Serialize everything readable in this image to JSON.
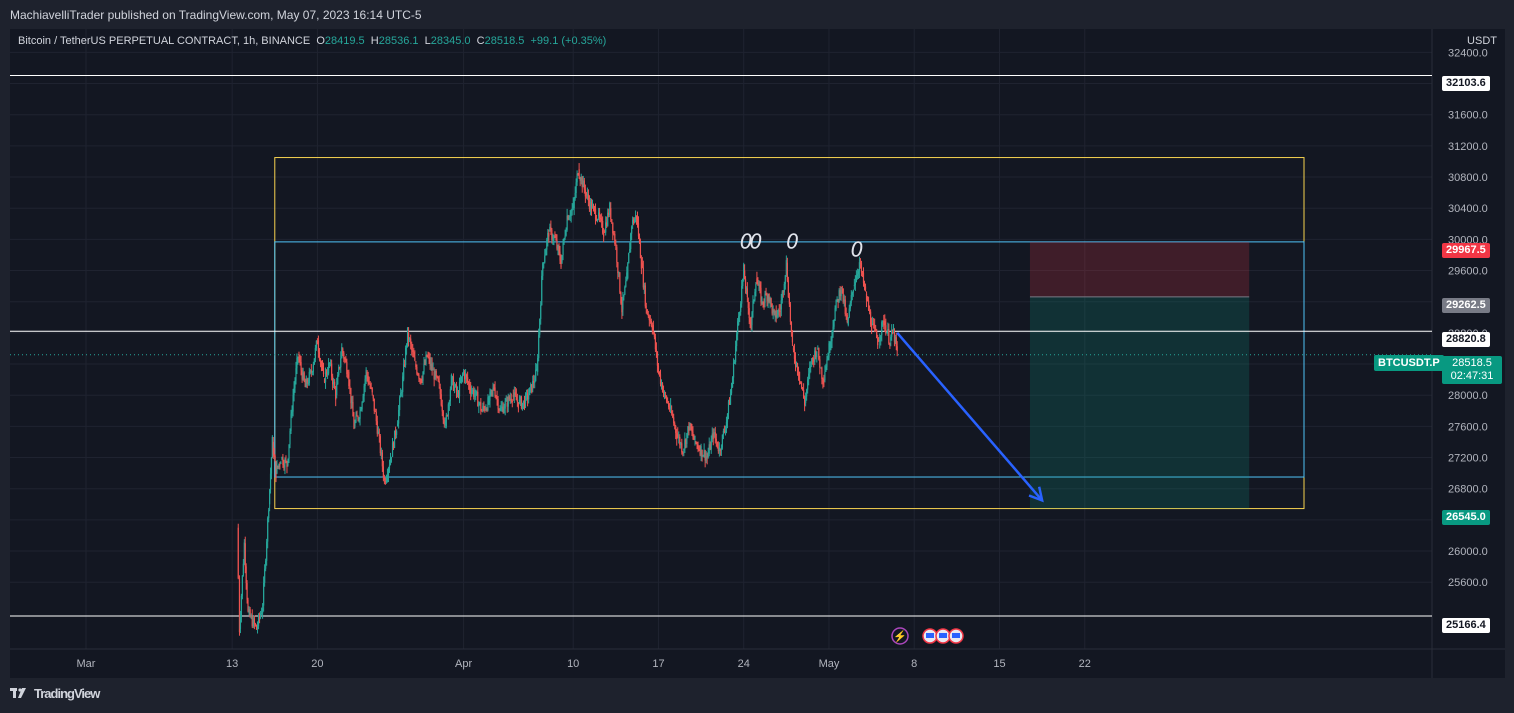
{
  "publisher": "MachiavelliTrader published on TradingView.com, May 07, 2023 16:14 UTC-5",
  "legend": {
    "symbol": "Bitcoin / TetherUS PERPETUAL CONTRACT, 1h, BINANCE",
    "o_label": "O",
    "o": "28419.5",
    "h_label": "H",
    "h": "28536.1",
    "l_label": "L",
    "l": "28345.0",
    "c_label": "C",
    "c": "28518.5",
    "change": "+99.1 (+0.35%)"
  },
  "currency": "USDT",
  "price_tags": {
    "top_line": "32103.6",
    "stop": "29967.5",
    "entry": "29262.5",
    "mid_line": "28820.8",
    "target": "26545.0",
    "bottom_line": "25166.4",
    "symbol": "BTCUSDT.P",
    "last": "28518.5",
    "countdown": "02:47:31"
  },
  "footer": {
    "brand": "TradingView"
  },
  "colors": {
    "up": "#26a69a",
    "down": "#ef5350",
    "bg": "#131722",
    "yellow_box": "#f7d34f",
    "cyan_box": "#4fc3f7",
    "risk": "#f23645",
    "reward": "#089981",
    "arrow": "#2962ff"
  },
  "chart_data": {
    "type": "candlestick",
    "interval": "1h",
    "ylim": [
      24900,
      32750
    ],
    "y_ticks": [
      25600,
      26000,
      26400,
      26800,
      27200,
      27600,
      28000,
      28400,
      28800,
      29200,
      29600,
      30000,
      30400,
      30800,
      31200,
      31600,
      32000,
      32400
    ],
    "y_tick_labels": [
      "25600.0",
      "26000.0",
      "26400.0",
      "26800.0",
      "27200.0",
      "27600.0",
      "28000.0",
      "28400.0",
      "28800.0",
      "29200.0",
      "29600.0",
      "30000.0",
      "30400.0",
      "30800.0",
      "31200.0",
      "31600.0",
      "32000.0",
      "32400.0"
    ],
    "x_labels": [
      {
        "label": "Mar",
        "day": 0
      },
      {
        "label": "13",
        "day": 12
      },
      {
        "label": "20",
        "day": 19
      },
      {
        "label": "Apr",
        "day": 31
      },
      {
        "label": "10",
        "day": 40
      },
      {
        "label": "17",
        "day": 47
      },
      {
        "label": "24",
        "day": 54
      },
      {
        "label": "May",
        "day": 61
      },
      {
        "label": "8",
        "day": 68
      },
      {
        "label": "15",
        "day": 75
      },
      {
        "label": "22",
        "day": 82
      }
    ],
    "price_path": [
      [
        12.4,
        26300
      ],
      [
        12.6,
        25000
      ],
      [
        13.0,
        26100
      ],
      [
        13.3,
        25200
      ],
      [
        14.0,
        25000
      ],
      [
        14.5,
        25300
      ],
      [
        15.0,
        26600
      ],
      [
        15.3,
        27400
      ],
      [
        15.6,
        27000
      ],
      [
        16.0,
        27200
      ],
      [
        16.5,
        27100
      ],
      [
        17.0,
        28000
      ],
      [
        17.4,
        28500
      ],
      [
        18.0,
        28100
      ],
      [
        18.5,
        28300
      ],
      [
        19.0,
        28700
      ],
      [
        19.5,
        28200
      ],
      [
        20.0,
        28400
      ],
      [
        20.5,
        28000
      ],
      [
        21.0,
        28600
      ],
      [
        21.5,
        28300
      ],
      [
        22.0,
        27600
      ],
      [
        22.5,
        27800
      ],
      [
        23.0,
        28300
      ],
      [
        23.5,
        28000
      ],
      [
        24.0,
        27500
      ],
      [
        24.5,
        26900
      ],
      [
        25.0,
        27200
      ],
      [
        25.5,
        27600
      ],
      [
        26.0,
        28200
      ],
      [
        26.4,
        28800
      ],
      [
        27.0,
        28400
      ],
      [
        27.5,
        28200
      ],
      [
        28.0,
        28500
      ],
      [
        28.5,
        28300
      ],
      [
        29.0,
        28100
      ],
      [
        29.5,
        27600
      ],
      [
        30.0,
        28200
      ],
      [
        30.5,
        28000
      ],
      [
        31.0,
        28300
      ],
      [
        31.5,
        28100
      ],
      [
        32.0,
        28000
      ],
      [
        32.5,
        27800
      ],
      [
        33.0,
        27900
      ],
      [
        33.5,
        28100
      ],
      [
        34.0,
        27800
      ],
      [
        34.5,
        27900
      ],
      [
        35.0,
        28000
      ],
      [
        35.5,
        27900
      ],
      [
        36.0,
        27900
      ],
      [
        36.6,
        28100
      ],
      [
        37.0,
        28300
      ],
      [
        37.5,
        29700
      ],
      [
        38.0,
        30100
      ],
      [
        38.5,
        30000
      ],
      [
        39.0,
        29700
      ],
      [
        39.5,
        30300
      ],
      [
        40.0,
        30400
      ],
      [
        40.4,
        30900
      ],
      [
        41.0,
        30600
      ],
      [
        41.5,
        30400
      ],
      [
        42.0,
        30300
      ],
      [
        42.5,
        30100
      ],
      [
        43.0,
        30400
      ],
      [
        43.5,
        29900
      ],
      [
        44.0,
        29100
      ],
      [
        44.4,
        29500
      ],
      [
        44.8,
        30200
      ],
      [
        45.2,
        30300
      ],
      [
        45.6,
        29700
      ],
      [
        46.0,
        29100
      ],
      [
        46.5,
        28900
      ],
      [
        47.0,
        28300
      ],
      [
        47.5,
        28000
      ],
      [
        48.0,
        27800
      ],
      [
        48.5,
        27500
      ],
      [
        49.0,
        27300
      ],
      [
        49.5,
        27600
      ],
      [
        50.0,
        27400
      ],
      [
        50.5,
        27300
      ],
      [
        51.0,
        27200
      ],
      [
        51.5,
        27500
      ],
      [
        52.0,
        27300
      ],
      [
        52.5,
        27600
      ],
      [
        53.0,
        28100
      ],
      [
        53.5,
        28900
      ],
      [
        54.0,
        29600
      ],
      [
        54.3,
        29200
      ],
      [
        54.6,
        28900
      ],
      [
        55.0,
        29500
      ],
      [
        55.5,
        29200
      ],
      [
        56.0,
        29300
      ],
      [
        56.5,
        29000
      ],
      [
        57.0,
        29100
      ],
      [
        57.5,
        29700
      ],
      [
        58.0,
        28600
      ],
      [
        58.5,
        28300
      ],
      [
        59.0,
        27900
      ],
      [
        59.5,
        28400
      ],
      [
        60.0,
        28600
      ],
      [
        60.5,
        28200
      ],
      [
        61.0,
        28600
      ],
      [
        61.5,
        29100
      ],
      [
        62.0,
        29400
      ],
      [
        62.5,
        28900
      ],
      [
        63.0,
        29400
      ],
      [
        63.5,
        29700
      ],
      [
        64.0,
        29300
      ],
      [
        64.5,
        28900
      ],
      [
        65.0,
        28700
      ],
      [
        65.5,
        28950
      ],
      [
        66.0,
        28700
      ],
      [
        66.3,
        28820
      ],
      [
        66.6,
        28518.5
      ]
    ],
    "horizontal_lines": [
      32103.6,
      28820.8,
      25166.4
    ],
    "range_box_outer": {
      "top": 31050,
      "bottom": 26545.0,
      "day_start": 15.5,
      "day_end": 100
    },
    "range_box_inner": {
      "top": 29967.5,
      "bottom": 26950,
      "day_start": 15.5,
      "day_end": 100
    },
    "short_position": {
      "entry": 29262.5,
      "stop": 29967.5,
      "target": 26545.0,
      "day_start": 77.5,
      "day_end": 95.5
    },
    "arrow": {
      "from": [
        66.6,
        28800
      ],
      "to": [
        78.5,
        26650
      ]
    },
    "annotations": [
      {
        "text": "0",
        "day": 54.2,
        "price": 29880
      },
      {
        "text": "0",
        "day": 55.0,
        "price": 29880
      },
      {
        "text": "0",
        "day": 58.0,
        "price": 29880
      },
      {
        "text": "0",
        "day": 63.3,
        "price": 29780
      }
    ]
  }
}
